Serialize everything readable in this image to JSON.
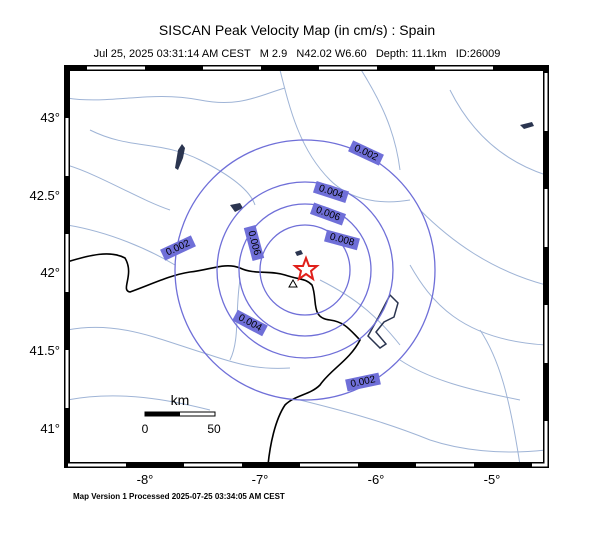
{
  "header": {
    "title": "SISCAN Peak Velocity Map (in cm/s) : Spain",
    "subtitle": "Jul 25, 2025 03:31:14 AM CEST   M 2.9   N42.02 W6.60   Depth: 11.1km   ID:26009"
  },
  "contour_labels": [
    "0.002",
    "0.002",
    "0.002",
    "0.004",
    "0.004",
    "0.006",
    "0.006",
    "0.008"
  ],
  "axes": {
    "lon_labels": [
      "-8°",
      "-7°",
      "-6°",
      "-5°"
    ],
    "lat_labels": [
      "43°",
      "42.5°",
      "42°",
      "41.5°",
      "41°"
    ]
  },
  "scale_bar": {
    "unit": "km",
    "ticks": [
      "0",
      "50"
    ]
  },
  "footer": "Map Version 1 Processed 2025-07-25 03:34:05 AM CEST"
}
